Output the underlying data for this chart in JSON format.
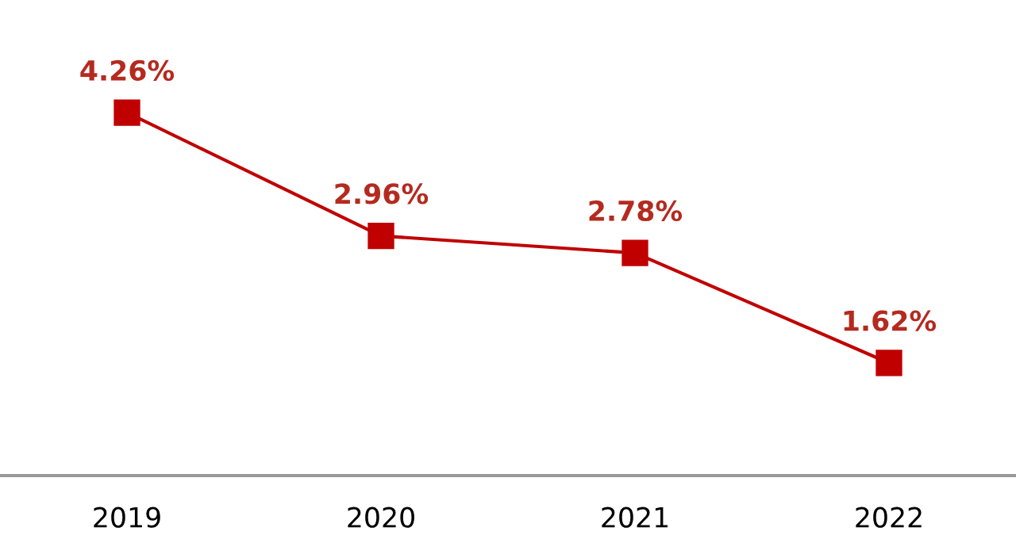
{
  "chart_data": {
    "type": "line",
    "categories": [
      "2019",
      "2020",
      "2021",
      "2022"
    ],
    "series": [
      {
        "color": "#c00000",
        "values": [
          4.26,
          2.96,
          2.78,
          1.62
        ],
        "value_labels": [
          "4.26%",
          "2.96%",
          "2.78%",
          "1.62%"
        ]
      }
    ],
    "tick_labels": "x",
    "grid": false,
    "legend": false,
    "marker": "square",
    "line_style": "solid"
  }
}
